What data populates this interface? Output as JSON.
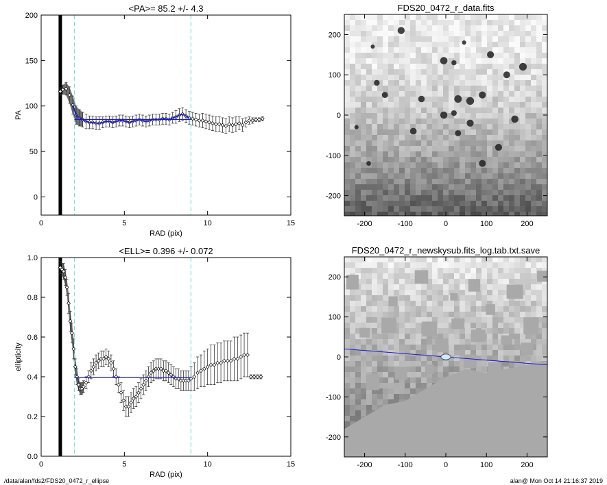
{
  "chart_data": [
    {
      "type": "scatter",
      "title": "<PA>=  85.2 +/-   4.3",
      "xlabel": "RAD (pix)",
      "ylabel": "PA",
      "xlim": [
        0,
        15
      ],
      "ylim": [
        -20,
        200
      ],
      "xticks": [
        "0",
        "5",
        "10",
        "15"
      ],
      "yticks": [
        "0",
        "50",
        "100",
        "150",
        "200"
      ],
      "mean_value": 85.2,
      "mean_range": [
        2.0,
        9.0
      ],
      "vlines": [
        2.0,
        9.0
      ],
      "thick_vline": 1.15,
      "series": [
        {
          "x": [
            1.15,
            1.3,
            1.5,
            1.7,
            1.9,
            2.1,
            2.3,
            2.5,
            2.7,
            2.9,
            3.1,
            3.3,
            3.5,
            3.7,
            3.9,
            4.1,
            4.3,
            4.5,
            4.7,
            4.9,
            5.1,
            5.3,
            5.5,
            5.7,
            5.9,
            6.1,
            6.3,
            6.5,
            6.7,
            6.9,
            7.1,
            7.3,
            7.5,
            7.7,
            7.9,
            8.1,
            8.3,
            8.5,
            8.7,
            8.9,
            9.1,
            9.3,
            9.5,
            9.7,
            9.9,
            10.1,
            10.3,
            10.5,
            10.7,
            10.9,
            11.1,
            11.3,
            11.5,
            11.7,
            11.9,
            12.1,
            12.3,
            12.5,
            12.7,
            12.9,
            13.1,
            13.3
          ],
          "y": [
            116,
            118,
            119,
            112,
            101,
            90,
            87,
            85,
            83,
            82,
            82,
            81,
            81,
            82,
            83,
            83,
            82,
            83,
            84,
            84,
            83,
            82,
            83,
            84,
            85,
            84,
            83,
            84,
            85,
            85,
            85,
            86,
            86,
            85,
            87,
            88,
            90,
            91,
            89,
            87,
            86,
            85,
            84,
            84,
            83,
            82,
            81,
            80,
            80,
            79,
            78,
            80,
            79,
            80,
            81,
            79,
            82,
            84,
            84,
            85,
            85,
            86
          ],
          "err": [
            4,
            5,
            7,
            9,
            10,
            10,
            9,
            8,
            8,
            7,
            7,
            7,
            7,
            6,
            6,
            6,
            6,
            6,
            6,
            6,
            6,
            6,
            6,
            6,
            6,
            6,
            6,
            6,
            6,
            6,
            6,
            6,
            6,
            6,
            6,
            7,
            7,
            7,
            7,
            7,
            7,
            7,
            7,
            8,
            8,
            8,
            8,
            8,
            8,
            8,
            8,
            8,
            8,
            8,
            7,
            7,
            5,
            4,
            3,
            2,
            2,
            2
          ]
        }
      ]
    },
    {
      "type": "scatter",
      "title": "<ELL>= 0.396 +/-  0.072",
      "xlabel": "RAD (pix)",
      "ylabel": "ellipticity",
      "xlim": [
        0,
        15
      ],
      "ylim": [
        0.0,
        1.0
      ],
      "xticks": [
        "0",
        "5",
        "10",
        "15"
      ],
      "yticks": [
        "0.0",
        "0.2",
        "0.4",
        "0.6",
        "0.8",
        "1.0"
      ],
      "mean_value": 0.396,
      "mean_range": [
        2.0,
        9.0
      ],
      "vlines": [
        2.0,
        9.0
      ],
      "thick_vline": 1.15,
      "series": [
        {
          "x": [
            1.15,
            1.25,
            1.35,
            1.45,
            1.55,
            1.65,
            1.75,
            1.85,
            1.95,
            2.05,
            2.15,
            2.25,
            2.35,
            2.45,
            2.55,
            2.7,
            2.85,
            3.0,
            3.15,
            3.3,
            3.45,
            3.6,
            3.75,
            3.9,
            4.05,
            4.2,
            4.35,
            4.5,
            4.65,
            4.8,
            4.95,
            5.1,
            5.25,
            5.4,
            5.55,
            5.7,
            5.85,
            6.0,
            6.15,
            6.3,
            6.45,
            6.6,
            6.75,
            6.9,
            7.05,
            7.2,
            7.35,
            7.5,
            7.65,
            7.8,
            7.95,
            8.1,
            8.25,
            8.4,
            8.55,
            8.7,
            8.85,
            9.0,
            9.2,
            9.4,
            9.6,
            9.8,
            10.0,
            10.2,
            10.4,
            10.6,
            10.8,
            11.0,
            11.2,
            11.4,
            11.6,
            11.8,
            12.0,
            12.2,
            12.4,
            12.6,
            12.8,
            13.0,
            13.2
          ],
          "y": [
            0.95,
            0.94,
            0.93,
            0.9,
            0.85,
            0.77,
            0.68,
            0.62,
            0.54,
            0.45,
            0.4,
            0.36,
            0.34,
            0.34,
            0.35,
            0.37,
            0.4,
            0.43,
            0.45,
            0.47,
            0.48,
            0.49,
            0.49,
            0.5,
            0.49,
            0.47,
            0.44,
            0.4,
            0.36,
            0.32,
            0.28,
            0.25,
            0.25,
            0.27,
            0.29,
            0.3,
            0.32,
            0.34,
            0.36,
            0.38,
            0.4,
            0.42,
            0.43,
            0.44,
            0.44,
            0.44,
            0.43,
            0.43,
            0.42,
            0.41,
            0.4,
            0.39,
            0.39,
            0.38,
            0.38,
            0.38,
            0.38,
            0.39,
            0.4,
            0.42,
            0.43,
            0.44,
            0.45,
            0.46,
            0.46,
            0.47,
            0.47,
            0.48,
            0.48,
            0.48,
            0.49,
            0.49,
            0.5,
            0.51,
            0.51,
            0.4,
            0.4,
            0.4,
            0.4
          ],
          "err": [
            0.03,
            0.03,
            0.04,
            0.04,
            0.04,
            0.05,
            0.05,
            0.05,
            0.05,
            0.04,
            0.04,
            0.03,
            0.03,
            0.03,
            0.03,
            0.03,
            0.03,
            0.04,
            0.04,
            0.04,
            0.04,
            0.04,
            0.04,
            0.04,
            0.04,
            0.04,
            0.04,
            0.04,
            0.04,
            0.05,
            0.05,
            0.05,
            0.05,
            0.05,
            0.05,
            0.05,
            0.05,
            0.05,
            0.05,
            0.05,
            0.05,
            0.05,
            0.05,
            0.05,
            0.05,
            0.05,
            0.05,
            0.05,
            0.05,
            0.05,
            0.05,
            0.05,
            0.05,
            0.05,
            0.05,
            0.05,
            0.05,
            0.06,
            0.07,
            0.08,
            0.08,
            0.09,
            0.09,
            0.1,
            0.1,
            0.1,
            0.1,
            0.1,
            0.1,
            0.1,
            0.11,
            0.11,
            0.11,
            0.11,
            0.11,
            0.01,
            0.01,
            0.01,
            0.01
          ]
        }
      ]
    },
    {
      "type": "heatmap",
      "title": "FDS20_0472_r_data.fits",
      "xlim": [
        -250,
        250
      ],
      "ylim": [
        -250,
        250
      ],
      "xticks": [
        "-200",
        "-100",
        "0",
        "100",
        "200"
      ],
      "yticks": [
        "-200",
        "-100",
        "0",
        "100",
        "200"
      ],
      "sources": [
        {
          "x": -180,
          "y": 170
        },
        {
          "x": -110,
          "y": 210
        },
        {
          "x": 20,
          "y": 130
        },
        {
          "x": -5,
          "y": 135
        },
        {
          "x": 45,
          "y": 180
        },
        {
          "x": 110,
          "y": 150
        },
        {
          "x": 150,
          "y": 100
        },
        {
          "x": 190,
          "y": 120
        },
        {
          "x": -170,
          "y": 80
        },
        {
          "x": -150,
          "y": 50
        },
        {
          "x": -60,
          "y": 40
        },
        {
          "x": 30,
          "y": 40
        },
        {
          "x": 60,
          "y": 35
        },
        {
          "x": 90,
          "y": 50
        },
        {
          "x": -5,
          "y": 0
        },
        {
          "x": 20,
          "y": 5
        },
        {
          "x": 30,
          "y": -45
        },
        {
          "x": 60,
          "y": -20
        },
        {
          "x": -220,
          "y": -30
        },
        {
          "x": -190,
          "y": -120
        },
        {
          "x": 130,
          "y": -80
        },
        {
          "x": 170,
          "y": -10
        },
        {
          "x": -80,
          "y": -40
        },
        {
          "x": 90,
          "y": -120
        }
      ]
    },
    {
      "type": "heatmap",
      "title": "FDS20_0472_r_newskysub.fits_log.tab.txt.save",
      "xlim": [
        -250,
        250
      ],
      "ylim": [
        -250,
        250
      ],
      "xticks": [
        "-200",
        "-100",
        "0",
        "100",
        "200"
      ],
      "yticks": [
        "-200",
        "-100",
        "0",
        "100",
        "200"
      ],
      "masks": [
        {
          "x": -230,
          "y": 190
        },
        {
          "x": -130,
          "y": 140
        },
        {
          "x": -60,
          "y": 200
        },
        {
          "x": 20,
          "y": 150
        },
        {
          "x": 70,
          "y": 180
        },
        {
          "x": 110,
          "y": 120
        },
        {
          "x": 170,
          "y": 160
        },
        {
          "x": 210,
          "y": 80
        },
        {
          "x": -200,
          "y": 60
        },
        {
          "x": -140,
          "y": 80
        },
        {
          "x": -40,
          "y": 70
        },
        {
          "x": 30,
          "y": 80
        },
        {
          "x": 80,
          "y": 50
        },
        {
          "x": 150,
          "y": 40
        },
        {
          "x": -180,
          "y": -60
        },
        {
          "x": -110,
          "y": -40
        },
        {
          "x": -40,
          "y": -30
        },
        {
          "x": 60,
          "y": -10
        },
        {
          "x": 120,
          "y": -30
        },
        {
          "x": 200,
          "y": 20
        },
        {
          "x": -10,
          "y": 30
        },
        {
          "x": 240,
          "y": 200
        }
      ],
      "boundary": [
        [
          -250,
          -180
        ],
        [
          -200,
          -150
        ],
        [
          -150,
          -120
        ],
        [
          -100,
          -110
        ],
        [
          -50,
          -80
        ],
        [
          0,
          -50
        ],
        [
          50,
          -30
        ],
        [
          100,
          -40
        ],
        [
          150,
          -30
        ],
        [
          200,
          -20
        ],
        [
          250,
          -10
        ]
      ],
      "fit_line": {
        "x1": -250,
        "y1": 20,
        "x2": 250,
        "y2": -20
      },
      "ellipse": {
        "x": 0,
        "y": 0,
        "rx": 12,
        "ry": 7
      }
    }
  ],
  "footer": {
    "left": "/data/alan/fds2/FDS20_0472_r_ellipse",
    "right": "alan@  Mon Oct 14 21:16:37 2019"
  },
  "colors": {
    "axis": "#000000",
    "mean_line": "#1a1acc",
    "vline": "#7fdcdc",
    "err": "#333333",
    "fill": "#444444",
    "mask": "#a9a9a9"
  }
}
